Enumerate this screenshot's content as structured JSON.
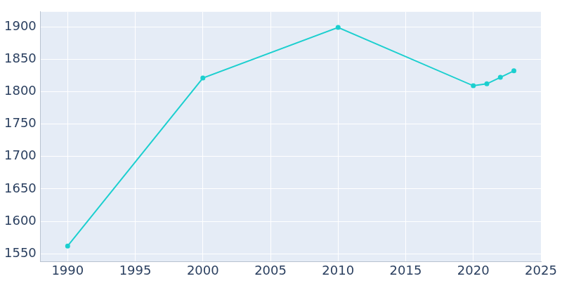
{
  "chart_data": {
    "type": "line",
    "x": [
      1990,
      2000,
      2010,
      2020,
      2021,
      2022,
      2023
    ],
    "values": [
      1562,
      1821,
      1899,
      1809,
      1812,
      1822,
      1832
    ],
    "color": "#1ccfcf",
    "marker": "circle",
    "xlim": [
      1988,
      2025
    ],
    "xticks": [
      1990,
      1995,
      2000,
      2005,
      2010,
      2015,
      2020,
      2025
    ],
    "ylim": [
      1538,
      1923
    ],
    "yticks": [
      1550,
      1600,
      1650,
      1700,
      1750,
      1800,
      1850,
      1900
    ],
    "grid": true
  }
}
